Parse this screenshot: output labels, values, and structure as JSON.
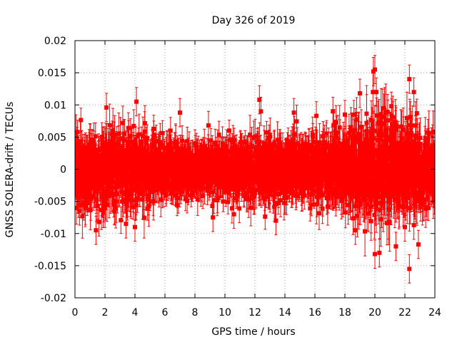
{
  "chart_data": {
    "type": "scatter",
    "title": "Day 326 of 2019",
    "xlabel": "GPS time / hours",
    "ylabel": "GNSS SOLERA-drift / TECUs",
    "xlim": [
      0,
      24
    ],
    "ylim": [
      -0.02,
      0.02
    ],
    "grid": true,
    "x_ticks": [
      0,
      2,
      4,
      6,
      8,
      10,
      12,
      14,
      16,
      18,
      20,
      22,
      24
    ],
    "x_tick_labels": [
      "0",
      "2",
      "4",
      "6",
      "8",
      "10",
      "12",
      "14",
      "16",
      "18",
      "20",
      "22",
      "24"
    ],
    "y_ticks": [
      -0.02,
      -0.015,
      -0.01,
      -0.005,
      0,
      0.005,
      0.01,
      0.015,
      0.02
    ],
    "y_tick_labels": [
      "-0.02",
      "-0.015",
      "-0.01",
      "-0.005",
      "0",
      "0.005",
      "0.01",
      "0.015",
      "0.02"
    ],
    "series": [
      {
        "name": "SOLERA-drift",
        "color": "#ff0000",
        "marker": "square",
        "error_bars": true,
        "n_points": 2880,
        "noise_envelope": [
          {
            "x": 0,
            "sd": 0.0026
          },
          {
            "x": 2,
            "sd": 0.0028
          },
          {
            "x": 4,
            "sd": 0.0027
          },
          {
            "x": 6,
            "sd": 0.0022
          },
          {
            "x": 8,
            "sd": 0.002
          },
          {
            "x": 10,
            "sd": 0.002
          },
          {
            "x": 12,
            "sd": 0.0024
          },
          {
            "x": 14,
            "sd": 0.0022
          },
          {
            "x": 16,
            "sd": 0.0024
          },
          {
            "x": 18,
            "sd": 0.003
          },
          {
            "x": 20,
            "sd": 0.0038
          },
          {
            "x": 22,
            "sd": 0.0034
          },
          {
            "x": 24,
            "sd": 0.0025
          }
        ],
        "outliers": [
          {
            "x": 0.3,
            "y": -0.0065
          },
          {
            "x": 1.4,
            "y": -0.0095
          },
          {
            "x": 1.6,
            "y": -0.0082
          },
          {
            "x": 2.1,
            "y": 0.0096
          },
          {
            "x": 4.1,
            "y": 0.0105
          },
          {
            "x": 4.0,
            "y": -0.009
          },
          {
            "x": 3.4,
            "y": -0.0085
          },
          {
            "x": 7.0,
            "y": 0.0088
          },
          {
            "x": 9.2,
            "y": -0.0075
          },
          {
            "x": 12.3,
            "y": 0.0108
          },
          {
            "x": 12.4,
            "y": 0.009
          },
          {
            "x": 13.4,
            "y": -0.008
          },
          {
            "x": 14.6,
            "y": 0.0088
          },
          {
            "x": 16.1,
            "y": 0.0083
          },
          {
            "x": 17.2,
            "y": 0.009
          },
          {
            "x": 18.0,
            "y": 0.0085
          },
          {
            "x": 18.6,
            "y": 0.0085
          },
          {
            "x": 18.7,
            "y": -0.0095
          },
          {
            "x": 19.0,
            "y": 0.0118
          },
          {
            "x": 19.9,
            "y": 0.0152
          },
          {
            "x": 20.0,
            "y": 0.0155
          },
          {
            "x": 20.1,
            "y": 0.012
          },
          {
            "x": 20.0,
            "y": -0.0132
          },
          {
            "x": 20.3,
            "y": -0.013
          },
          {
            "x": 20.6,
            "y": 0.0095
          },
          {
            "x": 21.1,
            "y": 0.0098
          },
          {
            "x": 21.4,
            "y": -0.012
          },
          {
            "x": 22.0,
            "y": -0.009
          },
          {
            "x": 22.3,
            "y": 0.014
          },
          {
            "x": 22.6,
            "y": 0.012
          },
          {
            "x": 22.3,
            "y": -0.0155
          },
          {
            "x": 22.6,
            "y": -0.0087
          },
          {
            "x": 22.8,
            "y": 0.0087
          },
          {
            "x": 22.9,
            "y": -0.0117
          },
          {
            "x": 10.6,
            "y": -0.007
          },
          {
            "x": 8.9,
            "y": 0.0068
          }
        ]
      }
    ]
  }
}
